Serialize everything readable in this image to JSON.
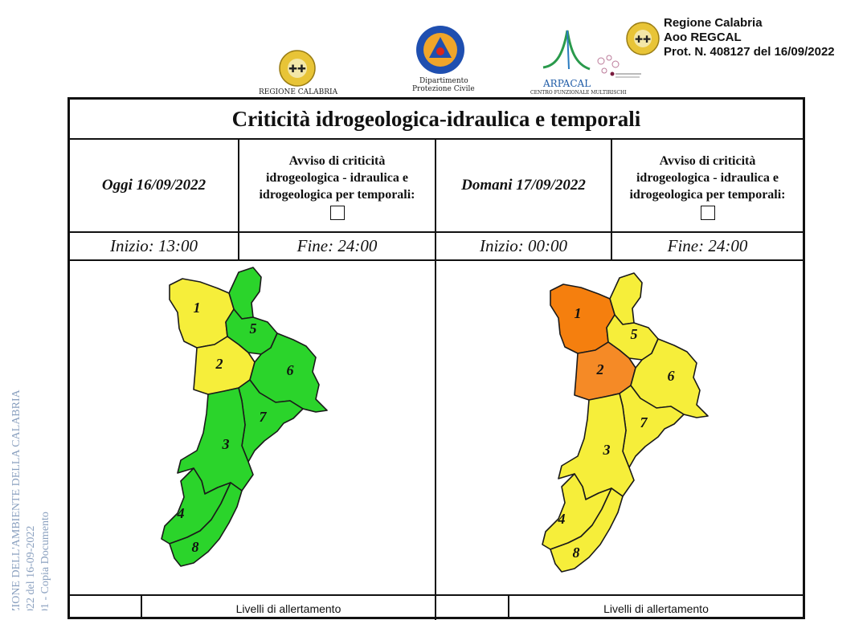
{
  "header": {
    "logo1_caption": "REGIONE CALABRIA",
    "logo2_caption_line1": "Dipartimento",
    "logo2_caption_line2": "Protezione Civile",
    "logo3_name": "ARPACAL",
    "logo3_caption": "CENTRO FUNZIONALE MULTIRISCHI",
    "protocol_line1": "Regione Calabria",
    "protocol_line2": "Aoo REGCAL",
    "protocol_line3": "Prot. N. 408127 del 16/09/2022"
  },
  "title": "Criticità idrogeologica-idraulica e temporali",
  "today": {
    "label": "Oggi 16/09/2022",
    "avviso": [
      "Avviso di criticità",
      "idrogeologica - idraulica e",
      "idrogeologica per temporali:"
    ],
    "inizio": "Inizio: 13:00",
    "fine": "Fine: 24:00",
    "zone_colors": {
      "1": "#f6ee3a",
      "2": "#f6ee3a",
      "3": "#2bd42b",
      "4": "#2bd42b",
      "5": "#2bd42b",
      "6": "#2bd42b",
      "7": "#2bd42b",
      "8": "#2bd42b",
      "n": "#2bd42b"
    }
  },
  "tomorrow": {
    "label": "Domani 17/09/2022",
    "avviso": [
      "Avviso di criticità",
      "idrogeologica - idraulica e",
      "idrogeologica per temporali:"
    ],
    "inizio": "Inizio: 00:00",
    "fine": "Fine: 24:00",
    "zone_colors": {
      "1": "#f57f0e",
      "2": "#f58a26",
      "3": "#f6ee3a",
      "4": "#f6ee3a",
      "5": "#f6ee3a",
      "6": "#f6ee3a",
      "7": "#f6ee3a",
      "8": "#f6ee3a",
      "n": "#f6ee3a"
    }
  },
  "zone_labels": [
    "1",
    "2",
    "3",
    "4",
    "5",
    "6",
    "7",
    "8"
  ],
  "legend_title": "Livelli di allertamento",
  "watermark": {
    "line1": "ZIONE DELL'AMBIENTE DELLA CALABRIA",
    "line2": "022 del 16-09-2022",
    "line3": "01 - Copia Documento"
  },
  "colors": {
    "green": "#2bd42b",
    "yellow": "#f6ee3a",
    "orange": "#f57f0e",
    "border": "#111111"
  }
}
